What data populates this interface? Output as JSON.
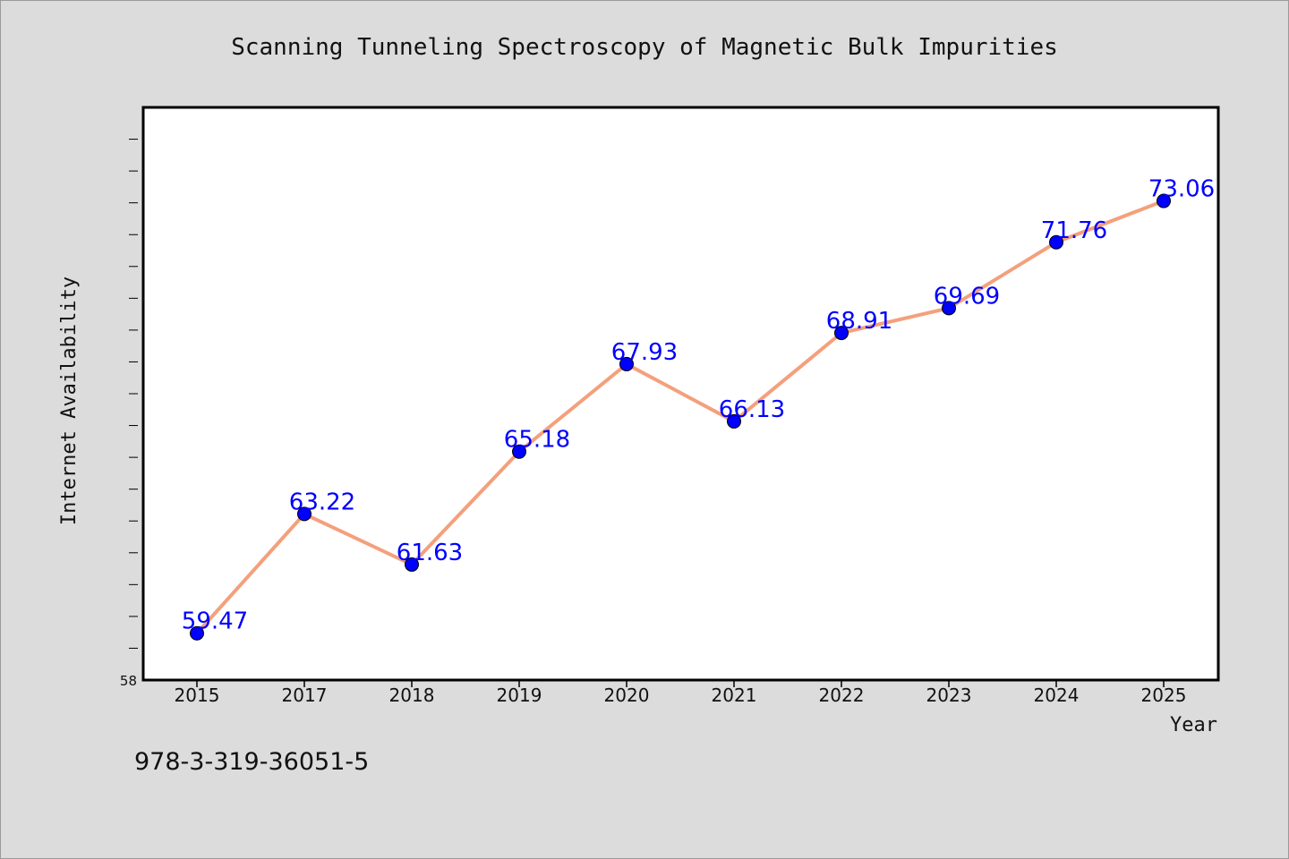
{
  "footer": {
    "isbn": "978-3-319-36051-5"
  },
  "chart_data": {
    "type": "line",
    "title": "Scanning Tunneling Spectroscopy of Magnetic Bulk Impurities",
    "xlabel": "Year",
    "ylabel": "Internet Availability",
    "categories": [
      "2015",
      "2017",
      "2018",
      "2019",
      "2020",
      "2021",
      "2022",
      "2023",
      "2024",
      "2025"
    ],
    "values": [
      59.47,
      63.22,
      61.63,
      65.18,
      67.93,
      66.13,
      68.91,
      69.69,
      71.76,
      73.06
    ],
    "data_labels": [
      "59.47",
      "63.22",
      "61.63",
      "65.18",
      "67.93",
      "66.13",
      "68.91",
      "69.69",
      "71.76",
      "73.06"
    ],
    "ylim": [
      58,
      76
    ],
    "y_min_label": "58",
    "grid": false,
    "legend": "none",
    "colors": {
      "line": "#f4a07c",
      "marker": "#0000ff",
      "label": "#0000ff",
      "background": "#dcdcdc",
      "plot_background": "#ffffff"
    }
  }
}
